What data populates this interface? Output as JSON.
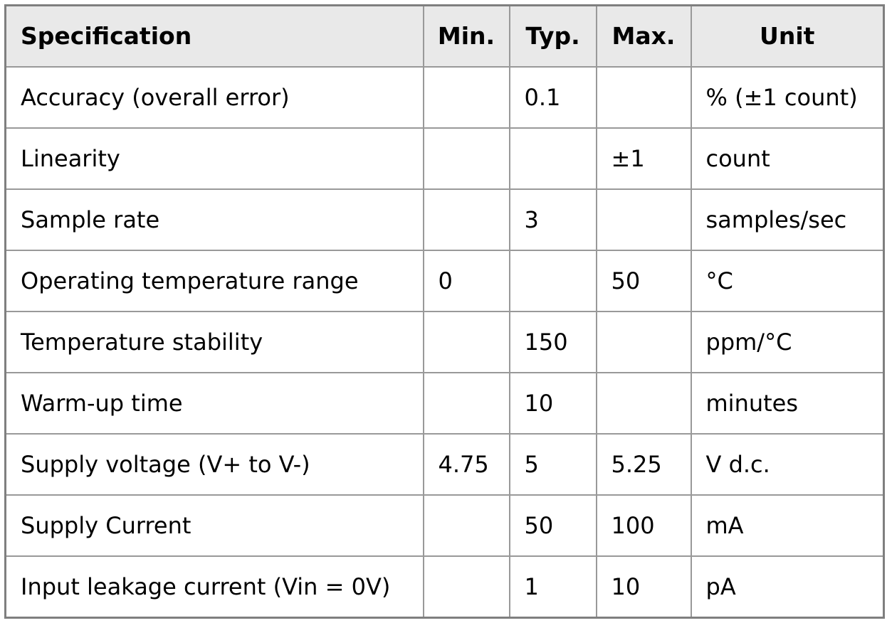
{
  "table": {
    "columns": [
      {
        "label": "Specification"
      },
      {
        "label": "Min."
      },
      {
        "label": "Typ."
      },
      {
        "label": "Max."
      },
      {
        "label": "Unit"
      }
    ],
    "rows": [
      {
        "specification": "Accuracy (overall error)",
        "min": "",
        "typ": "0.1",
        "max": "",
        "unit": "% (±1 count)"
      },
      {
        "specification": "Linearity",
        "min": "",
        "typ": "",
        "max": "±1",
        "unit": "count"
      },
      {
        "specification": "Sample rate",
        "min": "",
        "typ": "3",
        "max": "",
        "unit": "samples/sec"
      },
      {
        "specification": "Operating temperature range",
        "min": "0",
        "typ": "",
        "max": "50",
        "unit": "°C"
      },
      {
        "specification": "Temperature stability",
        "min": "",
        "typ": "150",
        "max": "",
        "unit": "ppm/°C"
      },
      {
        "specification": "Warm-up time",
        "min": "",
        "typ": "10",
        "max": "",
        "unit": "minutes"
      },
      {
        "specification": "Supply voltage (V+ to V-)",
        "min": "4.75",
        "typ": "5",
        "max": "5.25",
        "unit": "V d.c."
      },
      {
        "specification": "Supply Current",
        "min": "",
        "typ": "50",
        "max": "100",
        "unit": "mA"
      },
      {
        "specification": "Input leakage current (Vin = 0V)",
        "min": "",
        "typ": "1",
        "max": "10",
        "unit": "pA"
      }
    ],
    "colors": {
      "header_bg": "#e9e9e9",
      "row_bg": "#ffffff",
      "inner_border": "#999999",
      "outer_border": "#7f7f7f",
      "text": "#000000"
    }
  }
}
